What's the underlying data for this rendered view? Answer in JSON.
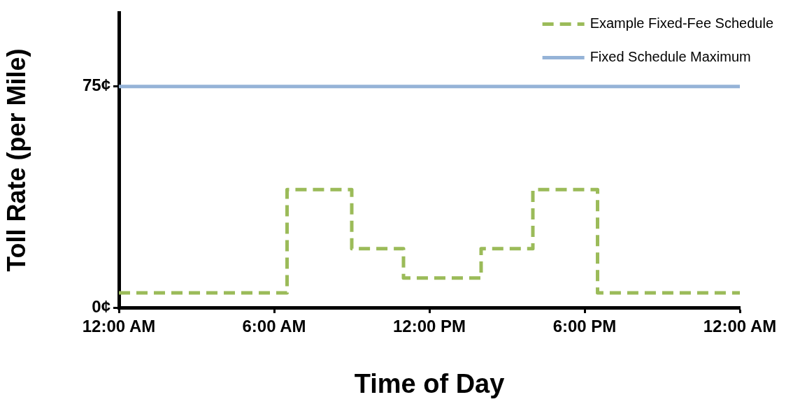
{
  "chart_data": {
    "type": "line",
    "xlabel": "Time of Day",
    "ylabel": "Toll Rate (per Mile)",
    "xlim": [
      0,
      24
    ],
    "xticks": [
      {
        "value": 0,
        "label": "12:00 AM"
      },
      {
        "value": 6,
        "label": "6:00 AM"
      },
      {
        "value": 12,
        "label": "12:00 PM"
      },
      {
        "value": 18,
        "label": "6:00 PM"
      },
      {
        "value": 24,
        "label": "12:00 AM"
      }
    ],
    "ylim": [
      0,
      100
    ],
    "yticks": [
      {
        "value": 0,
        "label": "0¢"
      },
      {
        "value": 75,
        "label": "75¢"
      }
    ],
    "grid": false,
    "legend": "top right",
    "marker": "none",
    "series": [
      {
        "name": "Example Fixed-Fee Schedule",
        "type": "step",
        "color": "#9bbb59",
        "line_style": "dashed",
        "x": [
          0,
          6.5,
          9,
          11,
          14,
          16,
          18.5,
          24
        ],
        "values": [
          5,
          40,
          20,
          10,
          20,
          40,
          5,
          5
        ]
      },
      {
        "name": "Fixed Schedule Maximum",
        "type": "line",
        "color": "#95b3d7",
        "line_style": "solid",
        "x": [
          0,
          24
        ],
        "values": [
          75,
          75
        ]
      }
    ]
  }
}
